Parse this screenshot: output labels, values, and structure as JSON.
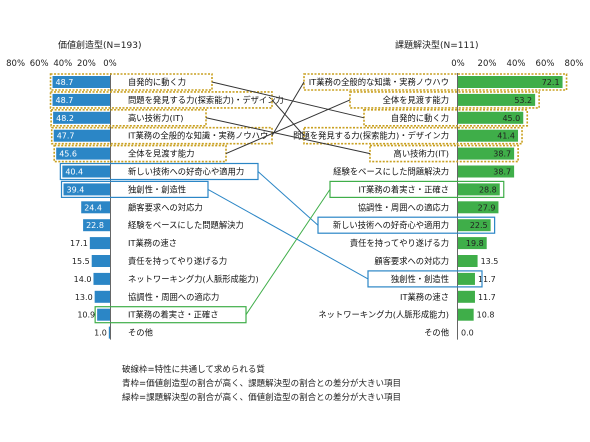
{
  "chart_data": [
    {
      "type": "bar",
      "title": "価値創造型(N=193)",
      "orientation": "horizontal-reversed",
      "xlim": [
        0,
        80
      ],
      "ticks": [
        "80%",
        "60%",
        "40%",
        "20%",
        "0%"
      ],
      "color": "#2b86c6",
      "categories": [
        "自発的に動く力",
        "問題を発見する力(探索能力)・デザイン力",
        "高い技術力(IT)",
        "IT業務の全般的な知識・実務ノウハウ",
        "全体を見渡す能力",
        "新しい技術への好奇心や適用力",
        "独創性・創造性",
        "顧客要求への対応力",
        "経験をベースにした問題解決力",
        "IT業務の速さ",
        "責任を持ってやり遂げる力",
        "ネットワーキング力(人脈形成能力)",
        "協調性・周囲への適応力",
        "IT業務の着実さ・正確さ",
        "その他"
      ],
      "values": [
        48.7,
        48.7,
        48.2,
        47.7,
        45.6,
        40.4,
        39.4,
        24.4,
        22.8,
        17.1,
        15.5,
        14.0,
        13.0,
        10.9,
        1.0
      ],
      "value_labels": [
        "48.7",
        "48.7",
        "48.2",
        "47.7",
        "45.6",
        "40.4",
        "39.4",
        "24.4",
        "22.8",
        "17.1",
        "15.5",
        "14.0",
        "13.0",
        "10.9",
        "1.0"
      ],
      "highlight": [
        "dotted",
        "dotted",
        "dotted",
        "dotted",
        "dotted",
        "blue",
        "blue",
        "none",
        "none",
        "none",
        "none",
        "none",
        "none",
        "green",
        "none"
      ]
    },
    {
      "type": "bar",
      "title": "課題解決型(N=111)",
      "orientation": "horizontal",
      "xlim": [
        0,
        80
      ],
      "ticks": [
        "0%",
        "20%",
        "40%",
        "60%",
        "80%"
      ],
      "color": "#3fae49",
      "categories": [
        "IT業務の全般的な知識・実務ノウハウ",
        "全体を見渡す能力",
        "自発的に動く力",
        "問題を発見する力(探索能力)・デザイン力",
        "高い技術力(IT)",
        "経験をベースにした問題解決力",
        "IT業務の着実さ・正確さ",
        "協調性・周囲への適応力",
        "新しい技術への好奇心や適用力",
        "責任を持ってやり遂げる力",
        "顧客要求への対応力",
        "独創性・創造性",
        "IT業務の速さ",
        "ネットワーキング力(人脈形成能力)",
        "その他"
      ],
      "values": [
        72.1,
        53.2,
        45.0,
        41.4,
        38.7,
        38.7,
        28.8,
        27.9,
        22.5,
        19.8,
        13.5,
        11.7,
        11.7,
        10.8,
        0.0
      ],
      "value_labels": [
        "72.1",
        "53.2",
        "45.0",
        "41.4",
        "38.7",
        "38.7",
        "28.8",
        "27.9",
        "22.5",
        "19.8",
        "13.5",
        "11.7",
        "11.7",
        "10.8",
        "0.0"
      ],
      "highlight": [
        "dotted",
        "dotted",
        "dotted",
        "dotted",
        "dotted",
        "none",
        "green",
        "none",
        "blue",
        "none",
        "none",
        "blue",
        "none",
        "none",
        "none"
      ]
    }
  ],
  "colors": {
    "dotted_frame": "#c9a020",
    "blue_frame": "#2b86c6",
    "green_frame": "#3fae49",
    "connector": "#333333",
    "blue_line": "#2b86c6",
    "green_line": "#3fae49"
  },
  "notes": [
    "破線枠=特性に共通して求められる質",
    "青枠=価値創造型の割合が高く、課題解決型の割合との差分が大きい項目",
    "緑枠=課題解決型の割合が高く、価値創造型の割合との差分が大きい項目"
  ]
}
